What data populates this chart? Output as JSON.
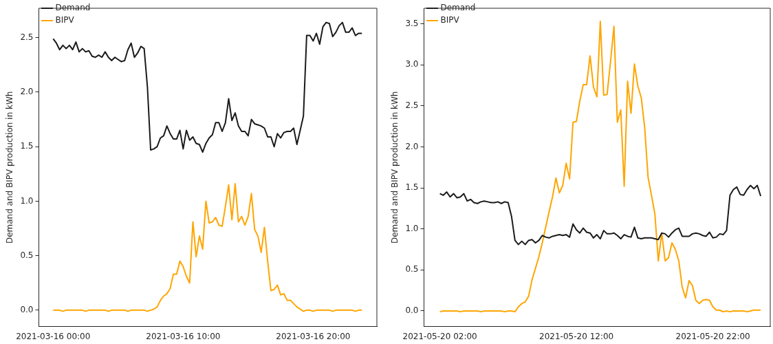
{
  "chart_data": [
    {
      "type": "line",
      "ylabel": "Demand and BIPV production in kWh",
      "x": [
        "2021-03-16T00:00",
        "2021-03-16T00:15",
        "2021-03-16T00:30",
        "2021-03-16T00:45",
        "2021-03-16T01:00",
        "2021-03-16T01:15",
        "2021-03-16T01:30",
        "2021-03-16T01:45",
        "2021-03-16T02:00",
        "2021-03-16T02:15",
        "2021-03-16T02:30",
        "2021-03-16T02:45",
        "2021-03-16T03:00",
        "2021-03-16T03:15",
        "2021-03-16T03:30",
        "2021-03-16T03:45",
        "2021-03-16T04:00",
        "2021-03-16T04:15",
        "2021-03-16T04:30",
        "2021-03-16T04:45",
        "2021-03-16T05:00",
        "2021-03-16T05:15",
        "2021-03-16T05:30",
        "2021-03-16T05:45",
        "2021-03-16T06:00",
        "2021-03-16T06:15",
        "2021-03-16T06:30",
        "2021-03-16T06:45",
        "2021-03-16T07:00",
        "2021-03-16T07:15",
        "2021-03-16T07:30",
        "2021-03-16T07:45",
        "2021-03-16T08:00",
        "2021-03-16T08:15",
        "2021-03-16T08:30",
        "2021-03-16T08:45",
        "2021-03-16T09:00",
        "2021-03-16T09:15",
        "2021-03-16T09:30",
        "2021-03-16T09:45",
        "2021-03-16T10:00",
        "2021-03-16T10:15",
        "2021-03-16T10:30",
        "2021-03-16T10:45",
        "2021-03-16T11:00",
        "2021-03-16T11:15",
        "2021-03-16T11:30",
        "2021-03-16T11:45",
        "2021-03-16T12:00",
        "2021-03-16T12:15",
        "2021-03-16T12:30",
        "2021-03-16T12:45",
        "2021-03-16T13:00",
        "2021-03-16T13:15",
        "2021-03-16T13:30",
        "2021-03-16T13:45",
        "2021-03-16T14:00",
        "2021-03-16T14:15",
        "2021-03-16T14:30",
        "2021-03-16T14:45",
        "2021-03-16T15:00",
        "2021-03-16T15:15",
        "2021-03-16T15:30",
        "2021-03-16T15:45",
        "2021-03-16T16:00",
        "2021-03-16T16:15",
        "2021-03-16T16:30",
        "2021-03-16T16:45",
        "2021-03-16T17:00",
        "2021-03-16T17:15",
        "2021-03-16T17:30",
        "2021-03-16T17:45",
        "2021-03-16T18:00",
        "2021-03-16T18:15",
        "2021-03-16T18:30",
        "2021-03-16T18:45",
        "2021-03-16T19:00",
        "2021-03-16T19:15",
        "2021-03-16T19:30",
        "2021-03-16T19:45",
        "2021-03-16T20:00",
        "2021-03-16T20:15",
        "2021-03-16T20:30",
        "2021-03-16T20:45",
        "2021-03-16T21:00",
        "2021-03-16T21:15",
        "2021-03-16T21:30",
        "2021-03-16T21:45",
        "2021-03-16T22:00",
        "2021-03-16T22:15",
        "2021-03-16T22:30",
        "2021-03-16T22:45",
        "2021-03-16T23:00",
        "2021-03-16T23:15",
        "2021-03-16T23:30",
        "2021-03-16T23:45"
      ],
      "xlim": [
        "2021-03-15T22:54",
        "2021-03-17T00:54"
      ],
      "xticks": [
        {
          "value": "2021-03-16T00:00",
          "label": "2021-03-16 00:00"
        },
        {
          "value": "2021-03-16T10:00",
          "label": "2021-03-16 10:00"
        },
        {
          "value": "2021-03-16T20:00",
          "label": "2021-03-16 20:00"
        }
      ],
      "ylim": [
        -0.15,
        2.77
      ],
      "yticks": [
        {
          "value": 0,
          "label": "0.0"
        },
        {
          "value": 0.5,
          "label": "0.5"
        },
        {
          "value": 1,
          "label": "1.0"
        },
        {
          "value": 1.5,
          "label": "1.5"
        },
        {
          "value": 2,
          "label": "2.0"
        },
        {
          "value": 2.5,
          "label": "2.5"
        }
      ],
      "legend": "top left",
      "series": [
        {
          "name": "Demand",
          "color": "#1a1a1a",
          "values": [
            2.49,
            2.45,
            2.39,
            2.43,
            2.4,
            2.43,
            2.39,
            2.46,
            2.37,
            2.4,
            2.37,
            2.38,
            2.33,
            2.32,
            2.34,
            2.32,
            2.37,
            2.32,
            2.29,
            2.32,
            2.3,
            2.28,
            2.29,
            2.39,
            2.45,
            2.32,
            2.36,
            2.42,
            2.4,
            2.05,
            1.47,
            1.48,
            1.5,
            1.58,
            1.6,
            1.69,
            1.62,
            1.57,
            1.57,
            1.65,
            1.48,
            1.65,
            1.56,
            1.59,
            1.53,
            1.52,
            1.45,
            1.53,
            1.58,
            1.61,
            1.72,
            1.72,
            1.64,
            1.72,
            1.94,
            1.74,
            1.81,
            1.69,
            1.64,
            1.64,
            1.6,
            1.75,
            1.71,
            1.7,
            1.69,
            1.67,
            1.59,
            1.59,
            1.5,
            1.62,
            1.58,
            1.63,
            1.64,
            1.64,
            1.67,
            1.52,
            1.65,
            1.78,
            2.52,
            2.52,
            2.47,
            2.54,
            2.44,
            2.6,
            2.64,
            2.63,
            2.51,
            2.55,
            2.61,
            2.64,
            2.55,
            2.55,
            2.59,
            2.52,
            2.54,
            2.54
          ]
        },
        {
          "name": "BIPV",
          "color": "#ffa500",
          "values": [
            0,
            0,
            0,
            -0.01,
            0,
            0,
            0,
            0,
            0,
            0,
            -0.01,
            0,
            0,
            0,
            0,
            0,
            0,
            -0.01,
            0,
            0,
            0,
            0,
            0,
            -0.01,
            0,
            0,
            0,
            0,
            0,
            -0.01,
            0,
            0.01,
            0.03,
            0.09,
            0.13,
            0.15,
            0.2,
            0.33,
            0.33,
            0.45,
            0.4,
            0.31,
            0.25,
            0.81,
            0.49,
            0.68,
            0.56,
            1.0,
            0.8,
            0.81,
            0.85,
            0.78,
            0.77,
            0.95,
            1.15,
            0.83,
            1.16,
            0.81,
            0.86,
            0.78,
            0.86,
            1.07,
            0.74,
            0.68,
            0.53,
            0.76,
            0.45,
            0.18,
            0.19,
            0.23,
            0.14,
            0.15,
            0.09,
            0.09,
            0.06,
            0.03,
            0.01,
            -0.01,
            0,
            0,
            -0.01,
            0,
            0,
            0,
            0,
            0,
            -0.01,
            0,
            0,
            0,
            0,
            0,
            0,
            -0.01,
            0,
            0
          ]
        }
      ]
    },
    {
      "type": "line",
      "ylabel": "Demand and BIPV production in kWh",
      "x": [
        "2021-05-20T02:00",
        "2021-05-20T02:15",
        "2021-05-20T02:30",
        "2021-05-20T02:45",
        "2021-05-20T03:00",
        "2021-05-20T03:15",
        "2021-05-20T03:30",
        "2021-05-20T03:45",
        "2021-05-20T04:00",
        "2021-05-20T04:15",
        "2021-05-20T04:30",
        "2021-05-20T04:45",
        "2021-05-20T05:00",
        "2021-05-20T05:15",
        "2021-05-20T05:30",
        "2021-05-20T05:45",
        "2021-05-20T06:00",
        "2021-05-20T06:15",
        "2021-05-20T06:30",
        "2021-05-20T06:45",
        "2021-05-20T07:00",
        "2021-05-20T07:15",
        "2021-05-20T07:30",
        "2021-05-20T07:45",
        "2021-05-20T08:00",
        "2021-05-20T08:15",
        "2021-05-20T08:30",
        "2021-05-20T08:45",
        "2021-05-20T09:00",
        "2021-05-20T09:15",
        "2021-05-20T09:30",
        "2021-05-20T09:45",
        "2021-05-20T10:00",
        "2021-05-20T10:15",
        "2021-05-20T10:30",
        "2021-05-20T10:45",
        "2021-05-20T11:00",
        "2021-05-20T11:15",
        "2021-05-20T11:30",
        "2021-05-20T11:45",
        "2021-05-20T12:00",
        "2021-05-20T12:15",
        "2021-05-20T12:30",
        "2021-05-20T12:45",
        "2021-05-20T13:00",
        "2021-05-20T13:15",
        "2021-05-20T13:30",
        "2021-05-20T13:45",
        "2021-05-20T14:00",
        "2021-05-20T14:15",
        "2021-05-20T14:30",
        "2021-05-20T14:45",
        "2021-05-20T15:00",
        "2021-05-20T15:15",
        "2021-05-20T15:30",
        "2021-05-20T15:45",
        "2021-05-20T16:00",
        "2021-05-20T16:15",
        "2021-05-20T16:30",
        "2021-05-20T16:45",
        "2021-05-20T17:00",
        "2021-05-20T17:15",
        "2021-05-20T17:30",
        "2021-05-20T17:45",
        "2021-05-20T18:00",
        "2021-05-20T18:15",
        "2021-05-20T18:30",
        "2021-05-20T18:45",
        "2021-05-20T19:00",
        "2021-05-20T19:15",
        "2021-05-20T19:30",
        "2021-05-20T19:45",
        "2021-05-20T20:00",
        "2021-05-20T20:15",
        "2021-05-20T20:30",
        "2021-05-20T20:45",
        "2021-05-20T21:00",
        "2021-05-20T21:15",
        "2021-05-20T21:30",
        "2021-05-20T21:45",
        "2021-05-20T22:00",
        "2021-05-20T22:15",
        "2021-05-20T22:30",
        "2021-05-20T22:45",
        "2021-05-20T23:00",
        "2021-05-20T23:15",
        "2021-05-20T23:30",
        "2021-05-20T23:45",
        "2021-05-21T00:00",
        "2021-05-21T00:15",
        "2021-05-21T00:30",
        "2021-05-21T00:45",
        "2021-05-21T01:00",
        "2021-05-21T01:15",
        "2021-05-21T01:30"
      ],
      "xlim": [
        "2021-05-20T00:50",
        "2021-05-21T02:12"
      ],
      "xticks": [
        {
          "value": "2021-05-20T02:00",
          "label": "2021-05-20 02:00"
        },
        {
          "value": "2021-05-20T12:00",
          "label": "2021-05-20 12:00"
        },
        {
          "value": "2021-05-20T22:00",
          "label": "2021-05-20 22:00"
        }
      ],
      "ylim": [
        -0.19,
        3.69
      ],
      "yticks": [
        {
          "value": 0,
          "label": "0.0"
        },
        {
          "value": 0.5,
          "label": "0.5"
        },
        {
          "value": 1,
          "label": "1.0"
        },
        {
          "value": 1.5,
          "label": "1.5"
        },
        {
          "value": 2,
          "label": "2.0"
        },
        {
          "value": 2.5,
          "label": "2.5"
        },
        {
          "value": 3,
          "label": "3.0"
        },
        {
          "value": 3.5,
          "label": "3.5"
        }
      ],
      "legend": "top left",
      "series": [
        {
          "name": "Demand",
          "color": "#1a1a1a",
          "values": [
            1.43,
            1.41,
            1.45,
            1.39,
            1.43,
            1.38,
            1.39,
            1.43,
            1.34,
            1.36,
            1.32,
            1.31,
            1.33,
            1.34,
            1.33,
            1.32,
            1.32,
            1.33,
            1.31,
            1.33,
            1.32,
            1.15,
            0.86,
            0.81,
            0.85,
            0.81,
            0.86,
            0.87,
            0.83,
            0.86,
            0.92,
            0.9,
            0.89,
            0.91,
            0.92,
            0.93,
            0.92,
            0.93,
            0.9,
            1.06,
            0.99,
            0.95,
            1.01,
            0.96,
            0.95,
            0.89,
            0.93,
            0.88,
            0.98,
            0.94,
            0.94,
            0.95,
            0.92,
            0.88,
            0.93,
            0.91,
            0.9,
            1.02,
            0.89,
            0.88,
            0.89,
            0.89,
            0.89,
            0.88,
            0.87,
            0.95,
            0.94,
            0.9,
            0.95,
            0.99,
            1.01,
            0.91,
            0.91,
            0.91,
            0.94,
            0.95,
            0.94,
            0.92,
            0.91,
            0.96,
            0.89,
            0.9,
            0.94,
            0.93,
            0.98,
            1.41,
            1.48,
            1.51,
            1.42,
            1.41,
            1.48,
            1.53,
            1.49,
            1.53,
            1.4
          ]
        },
        {
          "name": "BIPV",
          "color": "#ffa500",
          "values": [
            -0.01,
            0,
            0,
            0,
            0,
            0,
            -0.01,
            0,
            0,
            0,
            0,
            0,
            -0.01,
            0,
            0,
            0,
            0,
            0,
            0,
            -0.01,
            0,
            0,
            -0.01,
            0.05,
            0.09,
            0.11,
            0.18,
            0.38,
            0.52,
            0.66,
            0.83,
            1.02,
            1.21,
            1.39,
            1.62,
            1.44,
            1.53,
            1.8,
            1.61,
            2.3,
            2.31,
            2.56,
            2.76,
            2.76,
            3.11,
            2.73,
            2.61,
            3.53,
            2.63,
            2.64,
            3.04,
            3.47,
            2.3,
            2.45,
            1.52,
            2.8,
            2.41,
            3.01,
            2.74,
            2.6,
            2.24,
            1.63,
            1.41,
            1.18,
            0.61,
            0.95,
            0.61,
            0.65,
            0.83,
            0.75,
            0.61,
            0.29,
            0.16,
            0.37,
            0.31,
            0.13,
            0.09,
            0.13,
            0.14,
            0.13,
            0.05,
            0.01,
            0.01,
            -0.01,
            0,
            -0.01,
            0,
            0,
            0,
            0,
            -0.01,
            0,
            0.01,
            0.01,
            0.01
          ]
        }
      ]
    }
  ]
}
